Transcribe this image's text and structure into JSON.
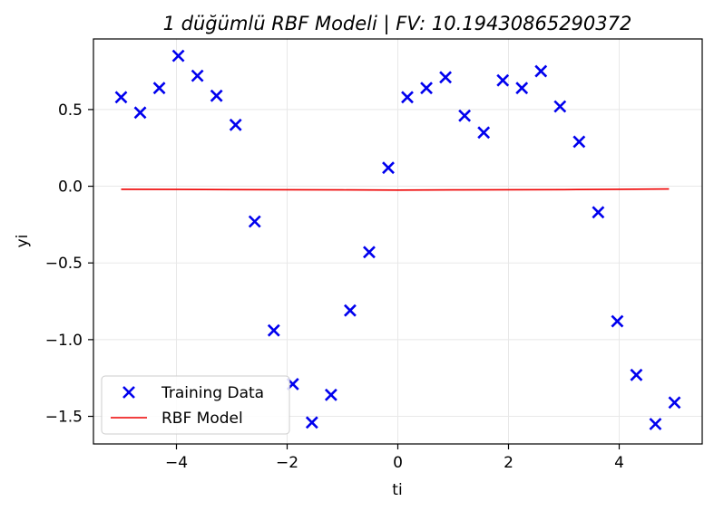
{
  "chart_data": {
    "type": "scatter",
    "title": "1 düğümlü RBF Modeli | FV: 10.19430865290372",
    "xlabel": "ti",
    "ylabel": "yi",
    "xlim": [
      -5.5,
      5.5
    ],
    "ylim": [
      -1.68,
      0.96
    ],
    "xticks": [
      -4,
      -2,
      0,
      2,
      4
    ],
    "xtick_labels": [
      "−4",
      "−2",
      "0",
      "2",
      "4"
    ],
    "yticks": [
      0.5,
      0.0,
      -0.5,
      -1.0,
      -1.5
    ],
    "ytick_labels": [
      "0.5",
      "0.0",
      "−0.5",
      "−1.0",
      "−1.5"
    ],
    "grid": true,
    "legend_position": "lower-left",
    "series": [
      {
        "name": "Training Data",
        "kind": "scatter",
        "marker": "x",
        "color": "#0000ee",
        "x": [
          -5.0,
          -4.655,
          -4.31,
          -3.966,
          -3.621,
          -3.276,
          -2.931,
          -2.586,
          -2.241,
          -1.897,
          -1.552,
          -1.207,
          -0.862,
          -0.517,
          -0.172,
          0.172,
          0.517,
          0.862,
          1.207,
          1.552,
          1.897,
          2.241,
          2.586,
          2.931,
          3.276,
          3.621,
          3.966,
          4.31,
          4.655,
          5.0
        ],
        "y": [
          0.58,
          0.48,
          0.64,
          0.85,
          0.72,
          0.59,
          0.4,
          -0.23,
          -0.94,
          -1.29,
          -1.54,
          -1.36,
          -0.81,
          -0.43,
          0.12,
          0.58,
          0.64,
          0.71,
          0.46,
          0.35,
          0.69,
          0.64,
          0.75,
          0.52,
          0.29,
          -0.17,
          -0.88,
          -1.23,
          -1.55,
          -1.41
        ]
      },
      {
        "name": "RBF Model",
        "kind": "line",
        "color": "#ee0000",
        "x": [
          -5.0,
          -4.0,
          -3.0,
          -2.0,
          -1.0,
          0.0,
          1.0,
          2.0,
          3.0,
          4.0,
          4.9
        ],
        "y": [
          -0.02,
          -0.021,
          -0.022,
          -0.023,
          -0.024,
          -0.025,
          -0.024,
          -0.023,
          -0.022,
          -0.02,
          -0.018
        ]
      }
    ]
  }
}
